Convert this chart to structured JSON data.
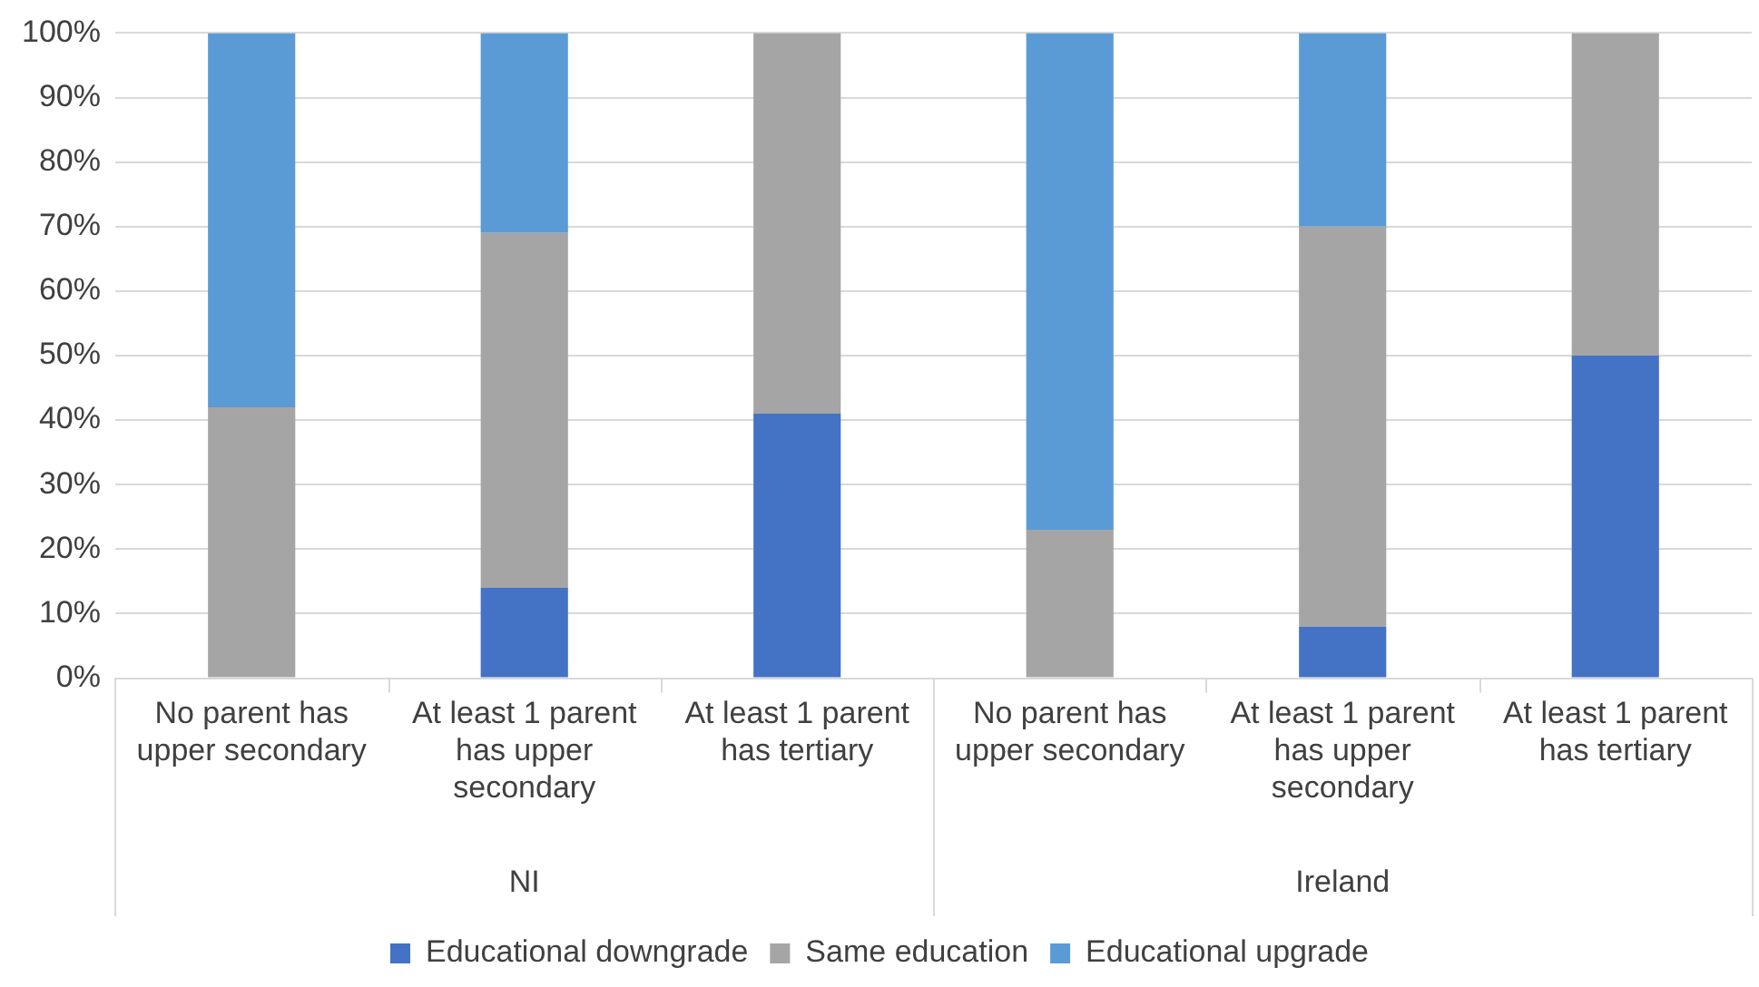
{
  "chart_data": {
    "type": "bar",
    "stacked": true,
    "categories": [
      "No parent has upper secondary",
      "At least 1 parent has upper secondary",
      "At least 1 parent has tertiary",
      "No parent has upper secondary",
      "At least 1 parent has upper secondary",
      "At least 1 parent has tertiary"
    ],
    "series": [
      {
        "name": "Educational downgrade",
        "color": "#4472c4",
        "values": [
          0,
          14,
          41,
          0,
          8,
          50
        ]
      },
      {
        "name": "Same education",
        "color": "#a5a5a5",
        "values": [
          42,
          55,
          59,
          23,
          62,
          50
        ]
      },
      {
        "name": "Educational upgrade",
        "color": "#5b9bd5",
        "values": [
          58,
          31,
          0,
          77,
          30,
          0
        ]
      }
    ],
    "annotations": [
      "NI",
      "Ireland"
    ],
    "ylim": [
      0,
      100
    ],
    "yticks": [
      {
        "value": 0,
        "label": "0%"
      },
      {
        "value": 10,
        "label": "10%"
      },
      {
        "value": 20,
        "label": "20%"
      },
      {
        "value": 30,
        "label": "30%"
      },
      {
        "value": 40,
        "label": "40%"
      },
      {
        "value": 50,
        "label": "50%"
      },
      {
        "value": 60,
        "label": "60%"
      },
      {
        "value": 70,
        "label": "70%"
      },
      {
        "value": 80,
        "label": "80%"
      },
      {
        "value": 90,
        "label": "90%"
      },
      {
        "value": 100,
        "label": "100%"
      }
    ],
    "grid": "y",
    "legend": "bottom"
  }
}
